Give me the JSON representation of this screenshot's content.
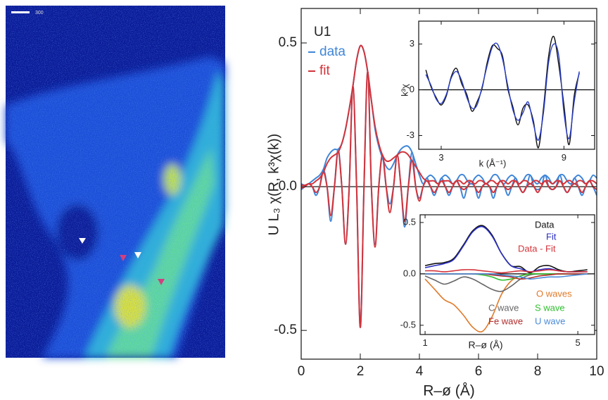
{
  "image": {
    "scale_label": "300"
  },
  "chart_data": [
    {
      "type": "line",
      "annotation": "U1",
      "xlabel": "R–ø (Å)",
      "ylabel": "U L₃ χ(R, k³χ(k))",
      "xlim": [
        0,
        10
      ],
      "ylim": [
        -0.6,
        0.62
      ],
      "xticks": [
        0,
        2,
        4,
        6,
        8,
        10
      ],
      "yticks": [
        -0.5,
        {
          "value": 0,
          "label": "0.0"
        },
        0.5
      ],
      "zero_line": true,
      "x": [
        0,
        0.125,
        0.25,
        0.375,
        0.5,
        0.625,
        0.75,
        0.875,
        1,
        1.125,
        1.25,
        1.375,
        1.5,
        1.625,
        1.75,
        1.875,
        2,
        2.125,
        2.25,
        2.375,
        2.5,
        2.625,
        2.75,
        2.875,
        3,
        3.125,
        3.25,
        3.375,
        3.5,
        3.625,
        3.75,
        3.875,
        4,
        4.125,
        4.25,
        4.375,
        4.5,
        4.625,
        4.75,
        4.875,
        5,
        5.125,
        5.25,
        5.375,
        5.5,
        5.625,
        5.75,
        5.875,
        6,
        6.125,
        6.25,
        6.375,
        6.5,
        6.625,
        6.75,
        6.875,
        7,
        7.125,
        7.25,
        7.375,
        7.5,
        7.625,
        7.75,
        7.875,
        8,
        8.125,
        8.25,
        8.375,
        8.5,
        8.625,
        8.75,
        8.875,
        9,
        9.125,
        9.25,
        9.375,
        9.5,
        9.625,
        9.75,
        9.875,
        10
      ],
      "series": [
        {
          "name": "data",
          "color": "#3f86d8",
          "values": [
            0.01,
            0.005,
            0.01,
            0.02,
            0.03,
            0.04,
            0.06,
            0.1,
            0.12,
            0.13,
            0.13,
            0.15,
            0.2,
            0.27,
            0.35,
            0.44,
            0.49,
            0.47,
            0.4,
            0.3,
            0.2,
            0.14,
            0.1,
            0.07,
            0.06,
            0.08,
            0.11,
            0.13,
            0.14,
            0.14,
            0.12,
            0.08,
            0.04,
            0.01,
            0.03,
            0.04,
            0.03,
            0.01,
            0.03,
            0.04,
            0.03,
            0.01,
            0.02,
            0.04,
            0.04,
            0.02,
            0.01,
            0.03,
            0.04,
            0.03,
            0.01,
            0.02,
            0.04,
            0.04,
            0.02,
            0.01,
            0.03,
            0.04,
            0.03,
            0.01,
            0.02,
            0.04,
            0.04,
            0.02,
            0.01,
            0.03,
            0.04,
            0.03,
            0.01,
            0.02,
            0.04,
            0.04,
            0.02,
            0.01,
            0.03,
            0.04,
            0.03,
            0.01,
            0.02,
            0.04,
            0.03
          ],
          "real": [
            -0.01,
            0,
            0.01,
            0,
            -0.03,
            0,
            0.06,
            0,
            -0.12,
            0,
            0.13,
            0,
            -0.2,
            0,
            0.35,
            0,
            -0.49,
            0,
            0.4,
            0,
            -0.2,
            0,
            0.1,
            0,
            -0.06,
            0,
            0.11,
            0,
            -0.14,
            0,
            0.12,
            0,
            -0.04,
            0,
            0.03,
            0,
            -0.03,
            0,
            0.03,
            0,
            -0.03,
            0,
            0.02,
            0,
            -0.04,
            0,
            0.01,
            0,
            -0.04,
            0,
            0.01,
            0,
            -0.04,
            0,
            0.02,
            0,
            -0.03,
            0,
            0.03,
            0,
            -0.02,
            0,
            0.04,
            0,
            -0.01,
            0,
            0.04,
            0,
            -0.01,
            0,
            0.04,
            0,
            -0.02,
            0,
            0.03,
            0,
            -0.03,
            0,
            0.02,
            0,
            -0.03
          ]
        },
        {
          "name": "fit",
          "color": "#d3333a",
          "values": [
            0.005,
            0.005,
            0.01,
            0.01,
            0.02,
            0.03,
            0.05,
            0.08,
            0.1,
            0.11,
            0.12,
            0.15,
            0.2,
            0.27,
            0.35,
            0.44,
            0.49,
            0.47,
            0.4,
            0.3,
            0.21,
            0.15,
            0.11,
            0.09,
            0.09,
            0.1,
            0.11,
            0.12,
            0.12,
            0.11,
            0.09,
            0.07,
            0.05,
            0.03,
            0.02,
            0.02,
            0.02,
            0.01,
            0.02,
            0.02,
            0.02,
            0.01,
            0.02,
            0.02,
            0.01,
            0.02,
            0.02,
            0.01,
            0.02,
            0.02,
            0.01,
            0.02,
            0.02,
            0.01,
            0.02,
            0.02,
            0.01,
            0.02,
            0.02,
            0.01,
            0.02,
            0.02,
            0.01,
            0.02,
            0.02,
            0.01,
            0.02,
            0.02,
            0.01,
            0.02,
            0.02,
            0.01,
            0.02,
            0.02,
            0.01,
            0.02,
            0.02,
            0.01,
            0.02,
            0.02,
            0.01
          ],
          "real": [
            -0.005,
            0,
            0.01,
            0,
            -0.02,
            0,
            0.05,
            0,
            -0.1,
            0,
            0.12,
            0,
            -0.2,
            0,
            0.35,
            0,
            -0.49,
            0,
            0.4,
            0,
            -0.21,
            0,
            0.11,
            0,
            -0.09,
            0,
            0.11,
            0,
            -0.12,
            0,
            0.09,
            0,
            -0.05,
            0,
            0.02,
            0,
            -0.02,
            0,
            0.02,
            0,
            -0.02,
            0,
            0.02,
            0,
            -0.01,
            0,
            0.02,
            0,
            -0.02,
            0,
            0.01,
            0,
            -0.02,
            0,
            0.02,
            0,
            -0.01,
            0,
            0.02,
            0,
            -0.02,
            0,
            0.01,
            0,
            -0.02,
            0,
            0.02,
            0,
            -0.01,
            0,
            0.02,
            0,
            -0.02,
            0,
            0.01,
            0,
            -0.02,
            0,
            0.02,
            0,
            -0.01
          ]
        }
      ]
    },
    {
      "type": "line",
      "xlabel": "k (Å⁻¹)",
      "ylabel": "k³χ",
      "xlim": [
        1.9,
        10.5
      ],
      "ylim": [
        -3.9,
        4.5
      ],
      "xticks": [
        3,
        9
      ],
      "yticks": [
        -3,
        0,
        3
      ],
      "zero_line": true,
      "x": [
        2.25,
        2.5,
        2.75,
        3,
        3.25,
        3.5,
        3.75,
        4,
        4.25,
        4.5,
        4.75,
        5,
        5.25,
        5.5,
        5.75,
        6,
        6.25,
        6.5,
        6.75,
        7,
        7.25,
        7.5,
        7.75,
        8,
        8.25,
        8.5,
        8.75,
        9,
        9.25,
        9.5,
        9.75
      ],
      "series": [
        {
          "color": "#111111",
          "values": [
            1.3,
            0.2,
            -0.5,
            -1.0,
            -0.4,
            0.9,
            1.4,
            0.4,
            -0.3,
            -1.4,
            -0.8,
            0.1,
            1.8,
            2.9,
            2.7,
            2.2,
            0.1,
            -1.1,
            -2.3,
            -1.2,
            -1.0,
            -2.0,
            -3.8,
            -1.2,
            2.2,
            3.5,
            1.6,
            -1.0,
            -3.6,
            -0.4,
            1.1
          ]
        },
        {
          "color": "#2a3fc8",
          "values": [
            1.0,
            0.3,
            -0.6,
            -0.9,
            -0.3,
            0.8,
            1.2,
            0.6,
            -0.5,
            -1.2,
            -1.0,
            0.2,
            1.6,
            2.8,
            3.0,
            2.0,
            0.3,
            -1.3,
            -2.0,
            -1.5,
            -0.8,
            -2.2,
            -3.3,
            -1.5,
            1.8,
            3.0,
            2.2,
            -1.5,
            -3.2,
            -0.8,
            1.2
          ]
        }
      ]
    },
    {
      "type": "line",
      "xlabel": "R–ø (Å)",
      "xlim": [
        0.87,
        5.44
      ],
      "ylim": [
        -0.59,
        0.575
      ],
      "xticks": [
        1,
        5
      ],
      "yticks": [
        -0.5,
        {
          "value": 0,
          "label": "0.0"
        },
        0.5
      ],
      "zero_line": true,
      "x": [
        1,
        1.25,
        1.5,
        1.75,
        2,
        2.25,
        2.5,
        2.75,
        3,
        3.25,
        3.5,
        3.75,
        4,
        4.25,
        4.5,
        4.75,
        5,
        5.25
      ],
      "series": [
        {
          "name": "Data",
          "color": "#111111",
          "values": [
            0.08,
            0.1,
            0.11,
            0.15,
            0.28,
            0.42,
            0.47,
            0.38,
            0.2,
            0.08,
            0.07,
            0.01,
            0.07,
            0.08,
            0.04,
            0.02,
            0.03,
            0.04
          ]
        },
        {
          "name": "Fit",
          "color": "#2a2fc0",
          "values": [
            0.06,
            0.08,
            0.1,
            0.14,
            0.27,
            0.41,
            0.46,
            0.37,
            0.2,
            0.08,
            0.05,
            0.02,
            0.04,
            0.05,
            0.03,
            0.02,
            0.02,
            0.02
          ]
        },
        {
          "name": "Data - Fit",
          "color": "#d3333a",
          "values": [
            0.03,
            0.03,
            0.02,
            0.03,
            0.04,
            0.04,
            0.03,
            0.02,
            0.01,
            0.02,
            0.03,
            0.02,
            0.03,
            0.04,
            0.03,
            0.02,
            0.02,
            0.02
          ]
        },
        {
          "name": "O waves",
          "color": "#e07a2a",
          "values": [
            -0.05,
            -0.15,
            -0.25,
            -0.3,
            -0.4,
            -0.52,
            -0.56,
            -0.42,
            -0.2,
            -0.07,
            -0.02,
            0,
            0,
            0,
            0,
            0,
            0,
            0
          ]
        },
        {
          "name": "C wave",
          "color": "#666666",
          "values": [
            -0.02,
            -0.06,
            -0.1,
            -0.07,
            -0.03,
            -0.05,
            -0.1,
            -0.15,
            -0.17,
            -0.12,
            -0.05,
            -0.01,
            0,
            0,
            0,
            0,
            0,
            0
          ]
        },
        {
          "name": "S wave",
          "color": "#2fbf2f",
          "values": [
            0,
            0,
            0,
            0,
            0,
            0,
            -0.01,
            -0.03,
            -0.06,
            -0.05,
            -0.02,
            0,
            0,
            0,
            0,
            0,
            0,
            0
          ]
        },
        {
          "name": "Fe wave",
          "color": "#b02a2a",
          "values": [
            0,
            0,
            0,
            0,
            0,
            0,
            0,
            -0.01,
            -0.02,
            -0.03,
            -0.05,
            -0.04,
            -0.02,
            -0.01,
            0,
            0,
            0,
            0
          ]
        },
        {
          "name": "U wave",
          "color": "#4a8ad8",
          "values": [
            0,
            0,
            0,
            0,
            0,
            0,
            0,
            0,
            -0.01,
            -0.02,
            -0.03,
            -0.05,
            -0.04,
            -0.03,
            -0.03,
            -0.02,
            -0.01,
            0
          ]
        }
      ]
    }
  ]
}
